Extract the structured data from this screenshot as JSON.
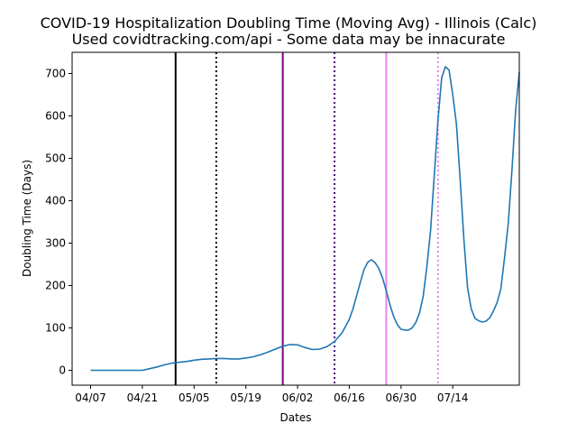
{
  "chart_data": {
    "type": "line",
    "title": "COVID-19 Hospitalization Doubling Time (Moving Avg) - Illinois (Calc)",
    "subtitle": "Used covidtracking.com/api - Some data may be innacurate",
    "xlabel": "Dates",
    "ylabel": "Doubling Time (Days)",
    "x_tick_labels": [
      "04/07",
      "04/21",
      "05/05",
      "05/19",
      "06/02",
      "06/16",
      "06/30",
      "07/14"
    ],
    "y_ticks": [
      0,
      100,
      200,
      300,
      400,
      500,
      600,
      700
    ],
    "xlim": [
      "2020-04-02",
      "2020-07-31"
    ],
    "ylim": [
      -35,
      750
    ],
    "grid": false,
    "series": [
      {
        "color": "#1f77b4",
        "points": [
          [
            "2020-04-07",
            0
          ],
          [
            "2020-04-09",
            0
          ],
          [
            "2020-04-11",
            0
          ],
          [
            "2020-04-13",
            0
          ],
          [
            "2020-04-15",
            0
          ],
          [
            "2020-04-17",
            0
          ],
          [
            "2020-04-19",
            0
          ],
          [
            "2020-04-21",
            0
          ],
          [
            "2020-04-23",
            4
          ],
          [
            "2020-04-25",
            8
          ],
          [
            "2020-04-27",
            13
          ],
          [
            "2020-04-29",
            17
          ],
          [
            "2020-05-01",
            19
          ],
          [
            "2020-05-03",
            21
          ],
          [
            "2020-05-05",
            24
          ],
          [
            "2020-05-07",
            26
          ],
          [
            "2020-05-09",
            27
          ],
          [
            "2020-05-11",
            28
          ],
          [
            "2020-05-13",
            28
          ],
          [
            "2020-05-15",
            27
          ],
          [
            "2020-05-17",
            27
          ],
          [
            "2020-05-19",
            29
          ],
          [
            "2020-05-21",
            32
          ],
          [
            "2020-05-23",
            37
          ],
          [
            "2020-05-25",
            43
          ],
          [
            "2020-05-27",
            50
          ],
          [
            "2020-05-29",
            57
          ],
          [
            "2020-05-31",
            61
          ],
          [
            "2020-06-02",
            60
          ],
          [
            "2020-06-04",
            54
          ],
          [
            "2020-06-06",
            49
          ],
          [
            "2020-06-08",
            50
          ],
          [
            "2020-06-10",
            56
          ],
          [
            "2020-06-12",
            68
          ],
          [
            "2020-06-13",
            78
          ],
          [
            "2020-06-14",
            88
          ],
          [
            "2020-06-15",
            104
          ],
          [
            "2020-06-16",
            120
          ],
          [
            "2020-06-17",
            145
          ],
          [
            "2020-06-18",
            176
          ],
          [
            "2020-06-19",
            208
          ],
          [
            "2020-06-20",
            238
          ],
          [
            "2020-06-21",
            255
          ],
          [
            "2020-06-22",
            261
          ],
          [
            "2020-06-23",
            254
          ],
          [
            "2020-06-24",
            240
          ],
          [
            "2020-06-25",
            218
          ],
          [
            "2020-06-26",
            188
          ],
          [
            "2020-06-27",
            155
          ],
          [
            "2020-06-28",
            127
          ],
          [
            "2020-06-29",
            108
          ],
          [
            "2020-06-30",
            97
          ],
          [
            "2020-07-01",
            95
          ],
          [
            "2020-07-02",
            95
          ],
          [
            "2020-07-03",
            100
          ],
          [
            "2020-07-04",
            113
          ],
          [
            "2020-07-05",
            135
          ],
          [
            "2020-07-06",
            175
          ],
          [
            "2020-07-07",
            245
          ],
          [
            "2020-07-08",
            330
          ],
          [
            "2020-07-09",
            460
          ],
          [
            "2020-07-10",
            590
          ],
          [
            "2020-07-11",
            690
          ],
          [
            "2020-07-12",
            716
          ],
          [
            "2020-07-13",
            708
          ],
          [
            "2020-07-14",
            650
          ],
          [
            "2020-07-15",
            580
          ],
          [
            "2020-07-16",
            450
          ],
          [
            "2020-07-17",
            310
          ],
          [
            "2020-07-18",
            195
          ],
          [
            "2020-07-19",
            145
          ],
          [
            "2020-07-20",
            123
          ],
          [
            "2020-07-21",
            117
          ],
          [
            "2020-07-22",
            114
          ],
          [
            "2020-07-23",
            116
          ],
          [
            "2020-07-24",
            124
          ],
          [
            "2020-07-25",
            140
          ],
          [
            "2020-07-26",
            160
          ],
          [
            "2020-07-27",
            192
          ],
          [
            "2020-07-28",
            265
          ],
          [
            "2020-07-29",
            345
          ],
          [
            "2020-07-30",
            470
          ],
          [
            "2020-07-31",
            612
          ],
          [
            "2020-08-01",
            703
          ]
        ]
      }
    ],
    "vertical_lines": [
      {
        "date": "2020-04-30",
        "color": "#000000",
        "style": "solid"
      },
      {
        "date": "2020-05-11",
        "color": "#000000",
        "style": "dotted"
      },
      {
        "date": "2020-05-29",
        "color": "#800080",
        "style": "solid"
      },
      {
        "date": "2020-06-12",
        "color": "#4b0082",
        "style": "dotted"
      },
      {
        "date": "2020-06-26",
        "color": "#ee82ee",
        "style": "solid"
      },
      {
        "date": "2020-07-10",
        "color": "#ee82ee",
        "style": "dotted"
      }
    ]
  }
}
